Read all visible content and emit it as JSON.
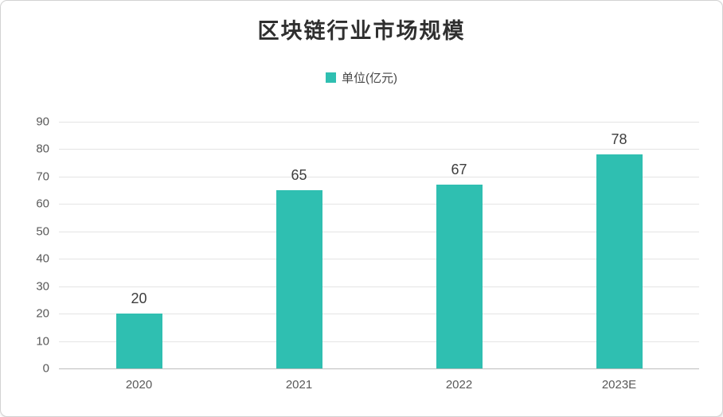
{
  "card": {
    "background": "#FFFFFF",
    "border_color": "#D2D2D2"
  },
  "chart_data": {
    "type": "bar",
    "title": "区块链行业市场规模",
    "legend": [
      {
        "label": "单位(亿元)",
        "color": "#2FBFB1"
      }
    ],
    "legend_position": "top",
    "categories": [
      "2020",
      "2021",
      "2022",
      "2023E"
    ],
    "values": [
      20,
      65,
      67,
      78
    ],
    "value_labels_shown": true,
    "xlabel": "",
    "ylabel": "",
    "ylim": [
      0,
      90
    ],
    "ytick_step": 10,
    "yticks": [
      0,
      10,
      20,
      30,
      40,
      50,
      60,
      70,
      80,
      90
    ],
    "grid": true,
    "bar_color": "#2FBFB1",
    "colors": {
      "gridline": "#E4E4E4",
      "axis_line": "#BDBDBD",
      "tick_label_text": "#595959",
      "value_label_text": "#3D3D3D",
      "title_text": "#2F2F2F"
    }
  }
}
